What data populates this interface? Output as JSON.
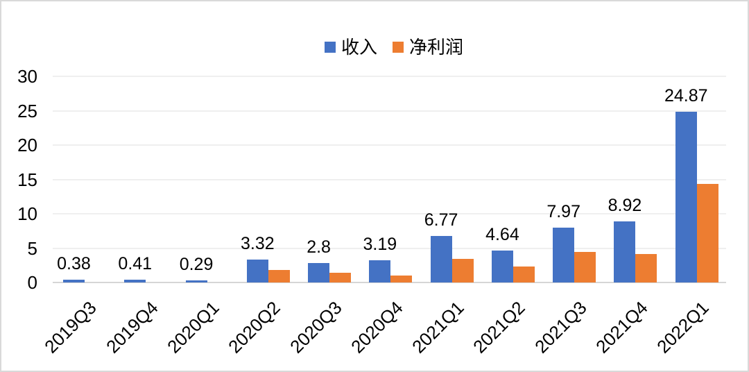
{
  "window": {
    "background": "#FFFFFF",
    "border_color": "#D9D9D9"
  },
  "legend": {
    "items": [
      {
        "label": "收入",
        "color": "#4472C4"
      },
      {
        "label": "净利润",
        "color": "#ED7D31"
      }
    ]
  },
  "chart_data": {
    "type": "bar",
    "title": "",
    "categories": [
      "2019Q3",
      "2019Q4",
      "2020Q1",
      "2020Q2",
      "2020Q3",
      "2020Q4",
      "2021Q1",
      "2021Q2",
      "2021Q3",
      "2021Q4",
      "2022Q1"
    ],
    "series": [
      {
        "name": "收入",
        "color": "#4472C4",
        "values": [
          0.38,
          0.41,
          0.29,
          3.32,
          2.8,
          3.19,
          6.77,
          4.64,
          7.97,
          8.92,
          24.87
        ],
        "data_labels": [
          "0.38",
          "0.41",
          "0.29",
          "3.32",
          "2.8",
          "3.19",
          "6.77",
          "4.64",
          "7.97",
          "8.92",
          "24.87"
        ]
      },
      {
        "name": "净利润",
        "color": "#ED7D31",
        "values": [
          0,
          0,
          0,
          1.8,
          1.4,
          1.0,
          3.4,
          2.3,
          4.4,
          4.1,
          14.3
        ],
        "data_labels": null
      }
    ],
    "xlabel": "",
    "ylabel": "",
    "ylim": [
      0,
      30
    ],
    "y_ticks": [
      0,
      5,
      10,
      15,
      20,
      25,
      30
    ],
    "grid": true,
    "gridline_color": "#EFEFEF",
    "axis_line_color": "#D6D6D6",
    "legend_position": "top",
    "x_tick_rotation": 45,
    "data_labels_on_series": "收入"
  }
}
